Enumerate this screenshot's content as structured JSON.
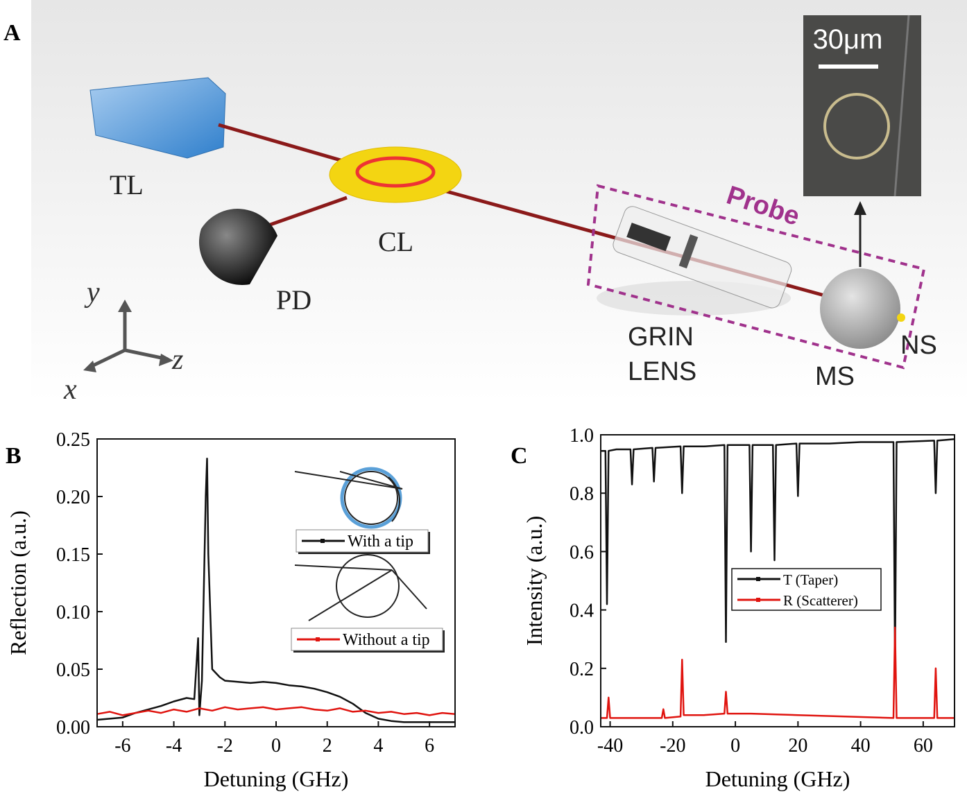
{
  "diagram": {
    "panel": "A",
    "labels": {
      "tl": "TL",
      "cl": "CL",
      "pd": "PD",
      "grin": "GRIN",
      "lens": "LENS",
      "ms": "MS",
      "ns": "NS",
      "probe": "Probe",
      "scale": "30μm",
      "x": "x",
      "y": "y",
      "z": "z"
    }
  },
  "chart_data": [
    {
      "type": "line",
      "panel": "B",
      "xlabel": "Detuning (GHz)",
      "ylabel": "Reflection (a.u.)",
      "xlim": [
        -7,
        7
      ],
      "xticks": [
        -6,
        -4,
        -2,
        0,
        2,
        4,
        6
      ],
      "ylim": [
        0,
        0.25
      ],
      "yticks": [
        {
          "value": 0,
          "label": "0.00"
        },
        {
          "value": 0.05,
          "label": "0.05"
        },
        {
          "value": 0.1,
          "label": "0.10"
        },
        {
          "value": 0.15,
          "label": "0.15"
        },
        {
          "value": 0.2,
          "label": "0.20"
        },
        {
          "value": 0.25,
          "label": "0.25"
        }
      ],
      "series": [
        {
          "name": "With a tip",
          "color": "#111111",
          "x": [
            -7,
            -6,
            -5.5,
            -5,
            -4.5,
            -4,
            -3.5,
            -3.2,
            -3.05,
            -3.0,
            -2.9,
            -2.75,
            -2.7,
            -2.65,
            -2.5,
            -2.2,
            -2,
            -1.5,
            -1,
            -0.5,
            0,
            0.5,
            1,
            1.5,
            2,
            2.5,
            3,
            3.5,
            4,
            4.5,
            5,
            6,
            7
          ],
          "values": [
            0.006,
            0.008,
            0.012,
            0.015,
            0.018,
            0.022,
            0.025,
            0.024,
            0.077,
            0.01,
            0.04,
            0.2,
            0.233,
            0.15,
            0.05,
            0.043,
            0.04,
            0.039,
            0.038,
            0.039,
            0.038,
            0.036,
            0.035,
            0.033,
            0.03,
            0.026,
            0.02,
            0.012,
            0.007,
            0.005,
            0.004,
            0.004,
            0.004
          ]
        },
        {
          "name": "Without a tip",
          "color": "#e0140f",
          "x": [
            -7,
            -6.5,
            -6,
            -5.5,
            -5,
            -4.5,
            -4,
            -3.5,
            -3,
            -2.5,
            -2,
            -1.5,
            -1,
            -0.5,
            0,
            0.5,
            1,
            1.5,
            2,
            2.5,
            3,
            3.5,
            4,
            4.5,
            5,
            5.5,
            6,
            6.5,
            7
          ],
          "values": [
            0.011,
            0.013,
            0.01,
            0.012,
            0.014,
            0.012,
            0.015,
            0.013,
            0.016,
            0.014,
            0.017,
            0.015,
            0.016,
            0.017,
            0.015,
            0.016,
            0.017,
            0.015,
            0.014,
            0.016,
            0.013,
            0.014,
            0.012,
            0.013,
            0.011,
            0.012,
            0.01,
            0.012,
            0.011
          ]
        }
      ]
    },
    {
      "type": "line",
      "panel": "C",
      "xlabel": "Detuning (GHz)",
      "ylabel": "Intensity (a.u.)",
      "xlim": [
        -43,
        70
      ],
      "xticks": [
        -40,
        -20,
        0,
        20,
        40,
        60
      ],
      "ylim": [
        0,
        1.0
      ],
      "yticks": [
        {
          "value": 0,
          "label": "0.0"
        },
        {
          "value": 0.2,
          "label": "0.2"
        },
        {
          "value": 0.4,
          "label": "0.4"
        },
        {
          "value": 0.6,
          "label": "0.6"
        },
        {
          "value": 0.8,
          "label": "0.8"
        },
        {
          "value": 1.0,
          "label": "1.0"
        }
      ],
      "series": [
        {
          "name": "T (Taper)",
          "color": "#111111",
          "x": [
            -43,
            -41.5,
            -41,
            -40.5,
            -38,
            -33.5,
            -33,
            -32.5,
            -26.5,
            -26,
            -25.5,
            -17.5,
            -17,
            -16.5,
            -10,
            -3.5,
            -3,
            -2.5,
            4.5,
            5,
            5.5,
            12,
            12.5,
            13,
            19.5,
            20,
            20.5,
            30,
            40,
            50.5,
            51,
            51.5,
            63.5,
            64,
            64.5,
            70
          ],
          "values": [
            0.945,
            0.945,
            0.42,
            0.945,
            0.95,
            0.95,
            0.83,
            0.95,
            0.955,
            0.84,
            0.955,
            0.96,
            0.8,
            0.96,
            0.96,
            0.965,
            0.29,
            0.965,
            0.965,
            0.6,
            0.965,
            0.965,
            0.57,
            0.965,
            0.97,
            0.79,
            0.97,
            0.97,
            0.975,
            0.975,
            0.21,
            0.975,
            0.98,
            0.8,
            0.98,
            0.985
          ]
        },
        {
          "name": "R (Scatterer)",
          "color": "#e0140f",
          "x": [
            -43,
            -41,
            -40.5,
            -40,
            -30,
            -23.5,
            -23,
            -22.5,
            -17.5,
            -17,
            -16.5,
            -10,
            -3.5,
            -3,
            -2.5,
            5,
            20,
            35,
            50.5,
            51,
            51.5,
            63.5,
            64,
            64.5,
            70
          ],
          "values": [
            0.03,
            0.03,
            0.1,
            0.03,
            0.03,
            0.03,
            0.06,
            0.03,
            0.035,
            0.23,
            0.04,
            0.04,
            0.045,
            0.12,
            0.045,
            0.045,
            0.04,
            0.035,
            0.03,
            0.34,
            0.03,
            0.03,
            0.2,
            0.03,
            0.03
          ]
        }
      ]
    }
  ]
}
